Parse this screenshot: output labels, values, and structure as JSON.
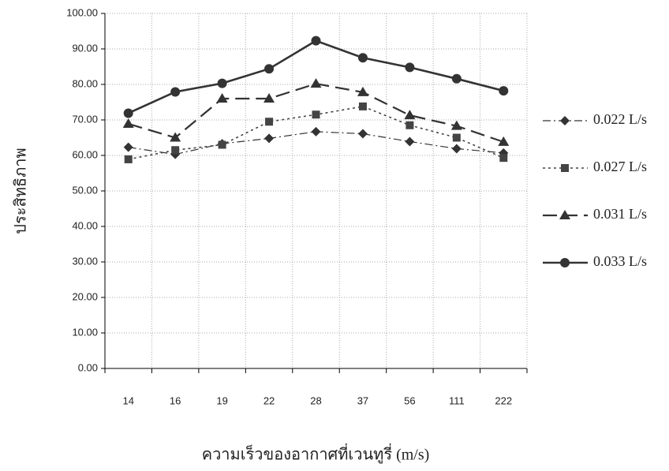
{
  "chart_data": {
    "type": "line",
    "x_label": "ความเร็วของอากาศที่เวนทูรี่ (m/s)",
    "y_label": "ประสิทธิภาพ",
    "categories": [
      "14",
      "16",
      "19",
      "22",
      "28",
      "37",
      "56",
      "111",
      "222"
    ],
    "series": [
      {
        "name": "0.022 L/s",
        "color": "#333333",
        "marker": "diamond",
        "line_style": "dashdot",
        "values": [
          62.3,
          60.3,
          63.3,
          64.8,
          66.7,
          66.1,
          63.9,
          61.9,
          60.7
        ]
      },
      {
        "name": "0.027 L/s",
        "color": "#444444",
        "marker": "square",
        "line_style": "dotted",
        "values": [
          58.9,
          61.5,
          63.0,
          69.5,
          71.5,
          73.8,
          68.5,
          65.0,
          59.3
        ]
      },
      {
        "name": "0.031 L/s",
        "color": "#333333",
        "marker": "triangle",
        "line_style": "dashed",
        "values": [
          68.9,
          65.0,
          76.0,
          76.0,
          80.2,
          77.8,
          71.3,
          68.3,
          63.8
        ]
      },
      {
        "name": "0.033 L/s",
        "color": "#333333",
        "marker": "circle",
        "line_style": "solid",
        "values": [
          71.9,
          77.9,
          80.3,
          84.4,
          92.3,
          87.5,
          84.8,
          81.6,
          78.2
        ]
      }
    ],
    "ylim": [
      0,
      100
    ],
    "yticks": [
      {
        "value": 0,
        "label": "0.00"
      },
      {
        "value": 10,
        "label": "10.00"
      },
      {
        "value": 20,
        "label": "20.00"
      },
      {
        "value": 30,
        "label": "30.00"
      },
      {
        "value": 40,
        "label": "40.00"
      },
      {
        "value": 50,
        "label": "50.00"
      },
      {
        "value": 60,
        "label": "60.00"
      },
      {
        "value": 70,
        "label": "70.00"
      },
      {
        "value": 80,
        "label": "80.00"
      },
      {
        "value": 90,
        "label": "90.00"
      },
      {
        "value": 100,
        "label": "100.00"
      }
    ],
    "grid": true,
    "legend": "right"
  }
}
